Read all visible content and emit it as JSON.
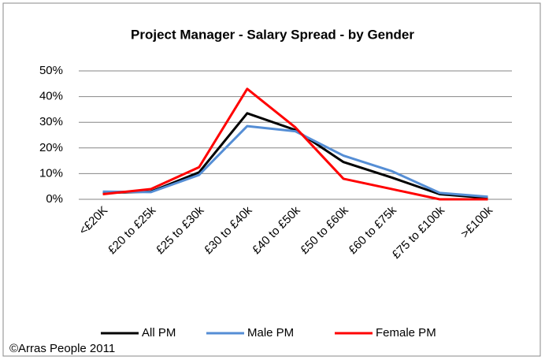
{
  "chart_data": {
    "type": "line",
    "title": "Project Manager - Salary Spread - by Gender",
    "categories": [
      "<£20K",
      "£20 to £25k",
      "£25 to £30k",
      "£30 to £40k",
      "£40 to £50k",
      "£50 to £60k",
      "£60 to £75k",
      "£75 to £100k",
      ">£100k"
    ],
    "series": [
      {
        "name": "All PM",
        "color": "#000000",
        "values": [
          2.5,
          3,
          10.5,
          33.5,
          27,
          14.5,
          8.5,
          2,
          0.5
        ]
      },
      {
        "name": "Male PM",
        "color": "#558ed5",
        "values": [
          3,
          2.8,
          9.5,
          28.5,
          26.5,
          17,
          11,
          2.5,
          1
        ]
      },
      {
        "name": "Female PM",
        "color": "#ff0000",
        "values": [
          2,
          4,
          12.5,
          43,
          28,
          8,
          4,
          0,
          0
        ]
      }
    ],
    "ylim": [
      0,
      50
    ],
    "yticks": [
      {
        "value": 0,
        "label": "0%"
      },
      {
        "value": 10,
        "label": "10%"
      },
      {
        "value": 20,
        "label": "20%"
      },
      {
        "value": 30,
        "label": "30%"
      },
      {
        "value": 40,
        "label": "40%"
      },
      {
        "value": 50,
        "label": "50%"
      }
    ],
    "grid": true,
    "legend": "bottom",
    "annotation": "©Arras People 2011"
  }
}
